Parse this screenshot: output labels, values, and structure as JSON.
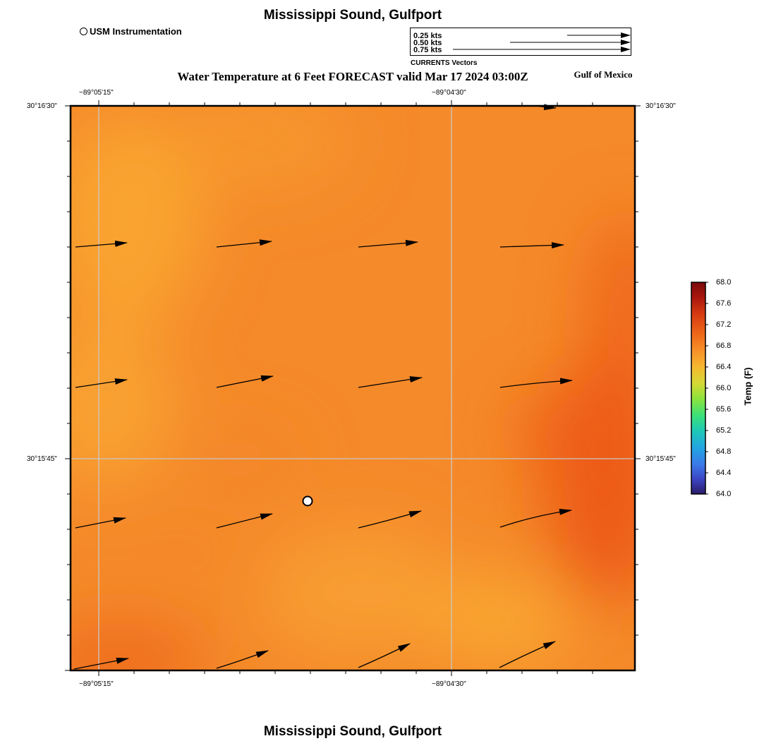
{
  "header": {
    "title": "Mississippi Sound, Gulfport",
    "subtitle": "Water Temperature at 6 Feet FORECAST valid Mar 17 2024 03:00Z",
    "region": "Gulf of Mexico",
    "footer_title": "Mississippi Sound, Gulfport"
  },
  "legend": {
    "station_label": "USM Instrumentation",
    "vector_title": "CURRENTS Vectors",
    "reference_vectors": [
      "0.25 kts",
      "0.50 kts",
      "0.75 kts"
    ]
  },
  "axes": {
    "top_ticks": [
      "−89°05'15\"",
      "−89°04'30\""
    ],
    "bottom_ticks": [
      "−89°05'15\"",
      "−89°04'30\""
    ],
    "left_ticks": [
      "30°16'30\"",
      "30°15'45\""
    ],
    "right_ticks": [
      "30°16'30\"",
      "30°15'45\""
    ]
  },
  "colorbar": {
    "title": "Temp (F)",
    "ticks": [
      "68.0",
      "67.6",
      "67.2",
      "66.8",
      "66.4",
      "66.0",
      "65.6",
      "65.2",
      "64.8",
      "64.4",
      "64.0"
    ],
    "min": 64.0,
    "max": 68.0
  },
  "colors": {
    "field_base": "#f58a2a",
    "field_light": "#f9a431",
    "field_dark": "#ee5c18",
    "gridline": "#c8c8c8"
  }
}
